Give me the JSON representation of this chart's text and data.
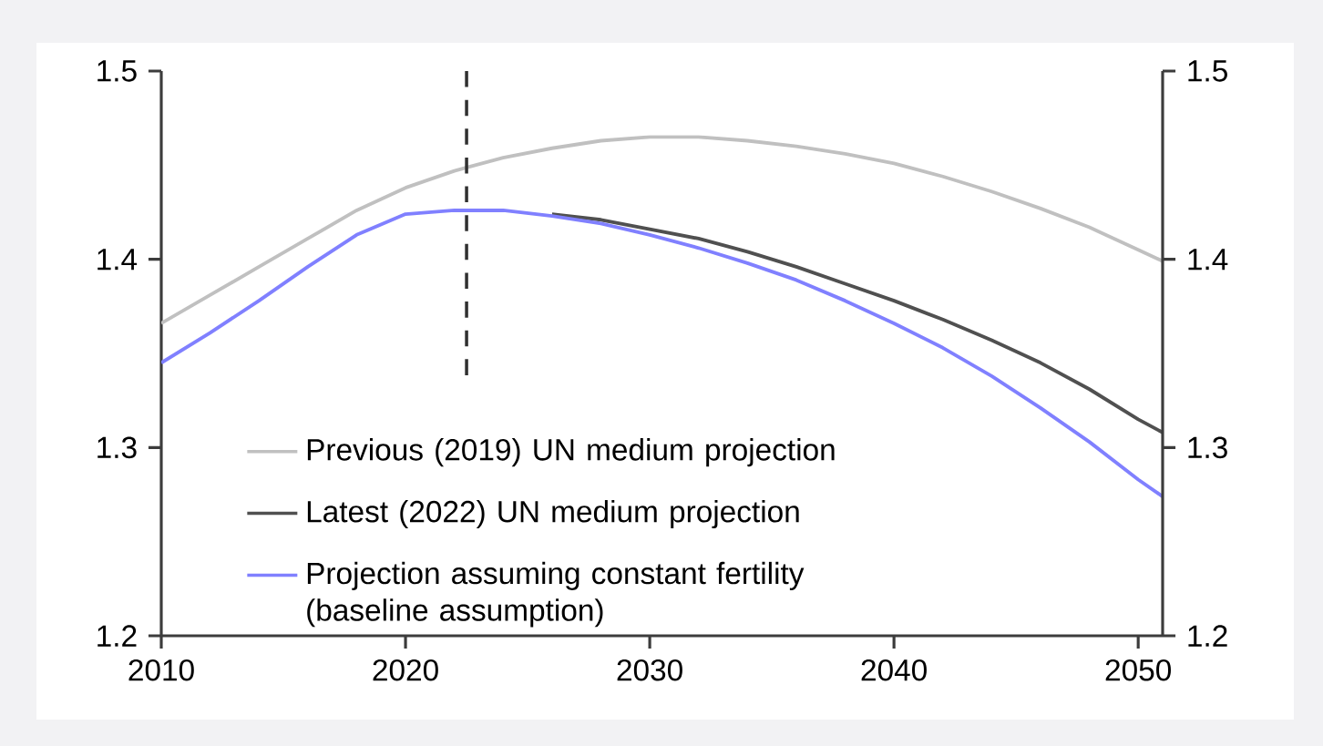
{
  "chart_data": {
    "type": "line",
    "x": [
      2010,
      2012,
      2014,
      2016,
      2018,
      2020,
      2022,
      2024,
      2026,
      2028,
      2030,
      2032,
      2034,
      2036,
      2038,
      2040,
      2042,
      2044,
      2046,
      2048,
      2050,
      2051
    ],
    "series": [
      {
        "name": "Previous (2019) UN medium projection",
        "color": "#c0c0c0",
        "values": [
          1.366,
          1.381,
          1.396,
          1.411,
          1.426,
          1.438,
          1.447,
          1.454,
          1.459,
          1.463,
          1.465,
          1.465,
          1.463,
          1.46,
          1.456,
          1.451,
          1.444,
          1.436,
          1.427,
          1.417,
          1.405,
          1.399
        ]
      },
      {
        "name": "Latest (2022) UN medium projection",
        "color": "#505050",
        "values": [
          null,
          null,
          null,
          null,
          null,
          null,
          null,
          null,
          1.424,
          1.421,
          1.416,
          1.411,
          1.404,
          1.396,
          1.387,
          1.378,
          1.368,
          1.357,
          1.345,
          1.331,
          1.315,
          1.308
        ]
      },
      {
        "name": "Projection assuming constant fertility (baseline assumption)",
        "color": "#8080ff",
        "values": [
          1.345,
          1.361,
          1.378,
          1.396,
          1.413,
          1.424,
          1.426,
          1.426,
          1.423,
          1.419,
          1.413,
          1.406,
          1.398,
          1.389,
          1.378,
          1.366,
          1.353,
          1.338,
          1.321,
          1.303,
          1.283,
          1.274
        ]
      }
    ],
    "xlim": [
      2010,
      2051
    ],
    "xticks": [
      2010,
      2020,
      2030,
      2040,
      2050
    ],
    "ylim": [
      1.2,
      1.5
    ],
    "yticks": [
      1.2,
      1.3,
      1.4,
      1.5
    ],
    "y2lim": [
      1.2,
      1.5
    ],
    "y2ticks": [
      1.2,
      1.3,
      1.4,
      1.5
    ],
    "ref_lines": [
      {
        "axis": "x",
        "value": 2022.5,
        "color": "#303030",
        "line_style": "dashed"
      }
    ],
    "legend": "bottom left",
    "grid": false,
    "marker": "none",
    "line_style": "solid"
  }
}
